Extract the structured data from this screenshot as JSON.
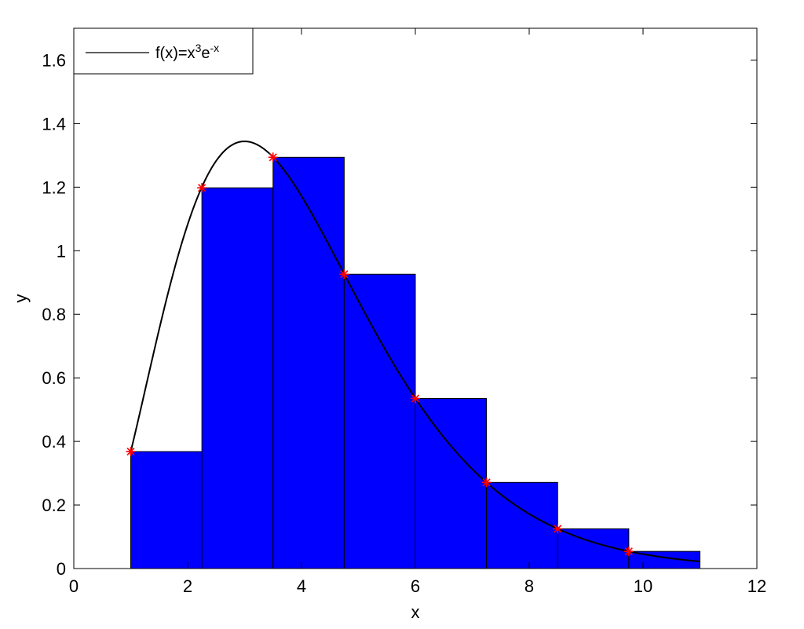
{
  "chart_data": {
    "type": "bar",
    "xlabel": "x",
    "ylabel": "y",
    "xlim": [
      0,
      12
    ],
    "ylim": [
      0,
      1.7
    ],
    "xticks": [
      0,
      2,
      4,
      6,
      8,
      10,
      12
    ],
    "xtick_labels": [
      "0",
      "2",
      "4",
      "6",
      "8",
      "10",
      "12"
    ],
    "yticks": [
      0,
      0.2,
      0.4,
      0.6,
      0.8,
      1,
      1.2,
      1.4,
      1.6
    ],
    "ytick_labels": [
      "0",
      "0.2",
      "0.4",
      "0.6",
      "0.8",
      "1",
      "1.2",
      "1.4",
      "1.6"
    ],
    "bars": {
      "left_edges": [
        1,
        2.25,
        3.5,
        4.75,
        6,
        7.25,
        8.5,
        9.75
      ],
      "width": 1.25,
      "values": [
        0.368,
        1.198,
        1.294,
        0.926,
        0.535,
        0.271,
        0.125,
        0.054
      ]
    },
    "samples": {
      "x": [
        1,
        2.25,
        3.5,
        4.75,
        6,
        7.25,
        8.5,
        9.75
      ],
      "y": [
        0.368,
        1.198,
        1.294,
        0.926,
        0.535,
        0.271,
        0.125,
        0.054
      ]
    },
    "curve": {
      "name": "f(x)=x^3e^-x",
      "x_range": [
        1,
        11
      ]
    },
    "legend": {
      "location": "top-left",
      "base": "f(x)=x",
      "sup1": "3",
      "mid": "e",
      "sup2": "-x"
    },
    "grid": false,
    "colors": {
      "bar_fill": "#0000ff",
      "bar_edge": "#000000",
      "curve": "#000000",
      "marker": "#ff0000"
    }
  }
}
